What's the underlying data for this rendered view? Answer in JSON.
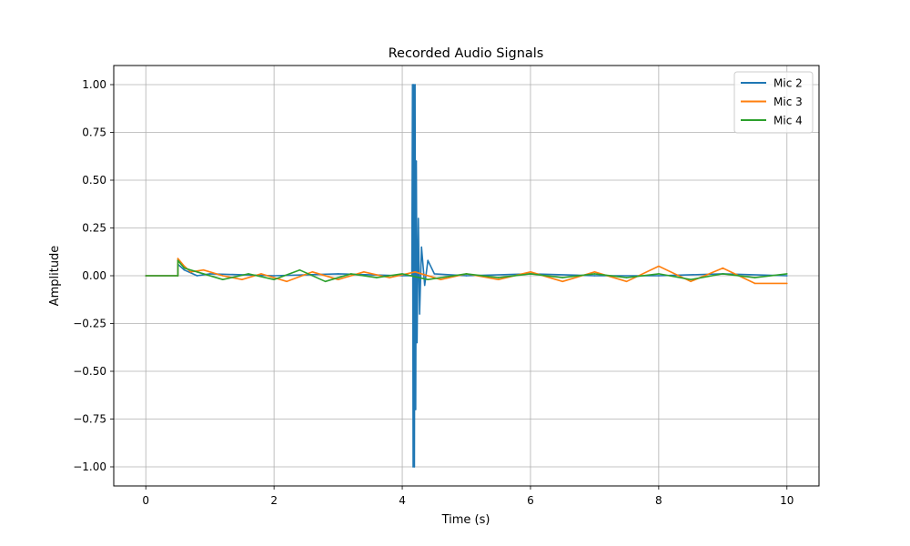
{
  "chart_data": {
    "type": "line",
    "title": "Recorded Audio Signals",
    "xlabel": "Time (s)",
    "ylabel": "Amplitude",
    "xlim": [
      -0.5,
      10.5
    ],
    "ylim": [
      -1.1,
      1.1
    ],
    "xticks": [
      0,
      2,
      4,
      6,
      8,
      10
    ],
    "xtick_labels": [
      "0",
      "2",
      "4",
      "6",
      "8",
      "10"
    ],
    "yticks": [
      1.0,
      0.75,
      0.5,
      0.25,
      0.0,
      -0.25,
      -0.5,
      -0.75,
      -1.0
    ],
    "ytick_labels": [
      "1.00",
      "0.75",
      "0.50",
      "0.25",
      "0.00",
      "−0.25",
      "−0.50",
      "−0.75",
      "−1.00"
    ],
    "grid": true,
    "legend_position": "top-right",
    "series": [
      {
        "name": "Mic 2",
        "color": "#1f77b4",
        "points": [
          [
            0,
            0
          ],
          [
            0.5,
            0
          ],
          [
            0.5,
            0.06
          ],
          [
            0.6,
            0.03
          ],
          [
            0.8,
            0.0
          ],
          [
            1.0,
            0.01
          ],
          [
            2.0,
            0.0
          ],
          [
            3.0,
            0.01
          ],
          [
            4.0,
            0.0
          ],
          [
            4.15,
            0.0
          ],
          [
            4.16,
            1.0
          ],
          [
            4.17,
            -1.0
          ],
          [
            4.18,
            1.0
          ],
          [
            4.19,
            -1.0
          ],
          [
            4.2,
            1.0
          ],
          [
            4.21,
            -0.7
          ],
          [
            4.22,
            0.6
          ],
          [
            4.23,
            -0.35
          ],
          [
            4.25,
            0.3
          ],
          [
            4.27,
            -0.2
          ],
          [
            4.3,
            0.15
          ],
          [
            4.35,
            -0.05
          ],
          [
            4.4,
            0.08
          ],
          [
            4.5,
            0.01
          ],
          [
            5.0,
            0.0
          ],
          [
            6.0,
            0.01
          ],
          [
            7.0,
            0.0
          ],
          [
            8.0,
            0.0
          ],
          [
            9.0,
            0.01
          ],
          [
            10.0,
            0.0
          ]
        ]
      },
      {
        "name": "Mic 3",
        "color": "#ff7f0e",
        "points": [
          [
            0,
            0
          ],
          [
            0.5,
            0
          ],
          [
            0.5,
            0.09
          ],
          [
            0.6,
            0.05
          ],
          [
            0.7,
            0.02
          ],
          [
            0.9,
            0.03
          ],
          [
            1.2,
            0.0
          ],
          [
            1.5,
            -0.02
          ],
          [
            1.8,
            0.01
          ],
          [
            2.2,
            -0.03
          ],
          [
            2.6,
            0.02
          ],
          [
            3.0,
            -0.02
          ],
          [
            3.4,
            0.02
          ],
          [
            3.8,
            -0.01
          ],
          [
            4.2,
            0.02
          ],
          [
            4.6,
            -0.02
          ],
          [
            5.0,
            0.01
          ],
          [
            5.5,
            -0.02
          ],
          [
            6.0,
            0.02
          ],
          [
            6.5,
            -0.03
          ],
          [
            7.0,
            0.02
          ],
          [
            7.5,
            -0.03
          ],
          [
            8.0,
            0.05
          ],
          [
            8.5,
            -0.03
          ],
          [
            9.0,
            0.04
          ],
          [
            9.5,
            -0.04
          ],
          [
            10.0,
            -0.04
          ]
        ]
      },
      {
        "name": "Mic 4",
        "color": "#2ca02c",
        "points": [
          [
            0,
            0
          ],
          [
            0.5,
            0
          ],
          [
            0.5,
            0.08
          ],
          [
            0.6,
            0.04
          ],
          [
            0.8,
            0.02
          ],
          [
            1.2,
            -0.02
          ],
          [
            1.6,
            0.01
          ],
          [
            2.0,
            -0.02
          ],
          [
            2.4,
            0.03
          ],
          [
            2.8,
            -0.03
          ],
          [
            3.2,
            0.01
          ],
          [
            3.6,
            -0.01
          ],
          [
            4.0,
            0.01
          ],
          [
            4.4,
            -0.02
          ],
          [
            5.0,
            0.01
          ],
          [
            5.5,
            -0.01
          ],
          [
            6.0,
            0.01
          ],
          [
            6.5,
            -0.01
          ],
          [
            7.0,
            0.01
          ],
          [
            7.5,
            -0.01
          ],
          [
            8.0,
            0.01
          ],
          [
            8.5,
            -0.02
          ],
          [
            9.0,
            0.01
          ],
          [
            9.5,
            -0.01
          ],
          [
            10.0,
            0.01
          ]
        ]
      }
    ]
  }
}
